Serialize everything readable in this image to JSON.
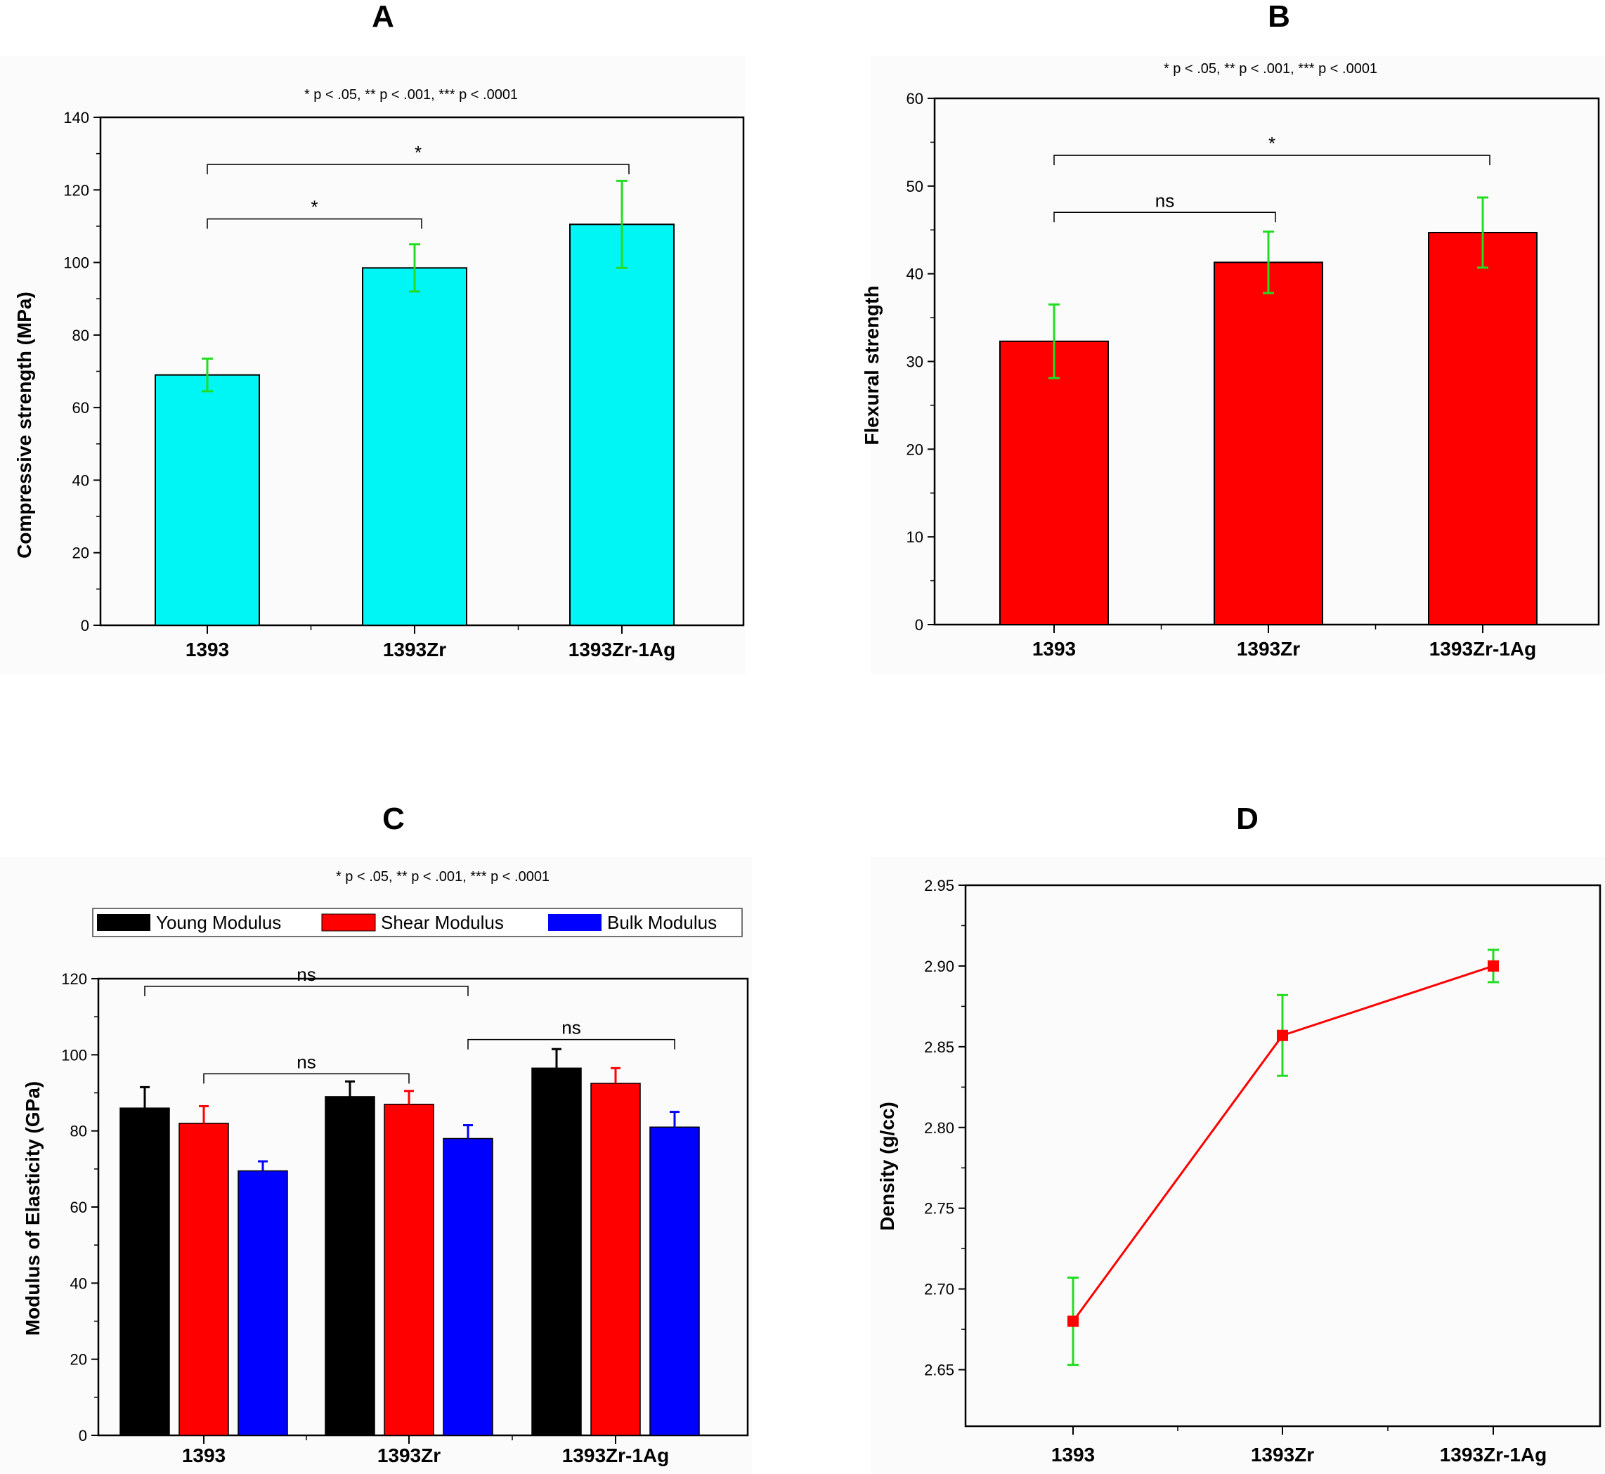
{
  "figure": {
    "panel_letters": [
      "A",
      "B",
      "C",
      "D"
    ]
  },
  "chart_data": [
    {
      "id": "A",
      "type": "bar",
      "title": "A",
      "subtitle": "* p < .05,  **  p < .001,  *** p < .0001",
      "xlabel": "",
      "ylabel": "Compressive strength (MPa)",
      "categories": [
        "1393",
        "1393Zr",
        "1393Zr-1Ag"
      ],
      "values": [
        69,
        98.5,
        110.5
      ],
      "errors": [
        4.5,
        6.5,
        12
      ],
      "bar_color": "#00f5f5",
      "error_color": "#22dd22",
      "ylim": [
        0,
        140
      ],
      "yticks": [
        0,
        20,
        40,
        60,
        80,
        100,
        120,
        140
      ],
      "significance": [
        {
          "from": 0,
          "to": 1,
          "label": "*",
          "y": 112
        },
        {
          "from": 0,
          "to": 2,
          "label": "*",
          "y": 127
        }
      ]
    },
    {
      "id": "B",
      "type": "bar",
      "title": "B",
      "subtitle": "* p < .05,  **  p < .001,  *** p < .0001",
      "xlabel": "",
      "ylabel": "Flexural strength",
      "categories": [
        "1393",
        "1393Zr",
        "1393Zr-1Ag"
      ],
      "values": [
        32.3,
        41.3,
        44.7
      ],
      "errors": [
        4.2,
        3.5,
        4.0
      ],
      "bar_color": "#ff0000",
      "error_color": "#22dd22",
      "ylim": [
        0,
        60
      ],
      "yticks": [
        0,
        10,
        20,
        30,
        40,
        50,
        60
      ],
      "significance": [
        {
          "from": 0,
          "to": 1,
          "label": "ns",
          "y": 47
        },
        {
          "from": 0,
          "to": 2,
          "label": "*",
          "y": 53.5
        }
      ]
    },
    {
      "id": "C",
      "type": "bar",
      "title": "C",
      "subtitle": "* p < .05,  **  p < .001,  *** p < .0001",
      "xlabel": "",
      "ylabel": "Modulus of Elasticity (GPa)",
      "categories": [
        "1393",
        "1393Zr",
        "1393Zr-1Ag"
      ],
      "series": [
        {
          "name": "Young Modulus",
          "color": "#000000",
          "values": [
            86,
            89,
            96.5
          ],
          "errors": [
            5.5,
            4,
            5
          ]
        },
        {
          "name": "Shear Modulus",
          "color": "#ff0000",
          "values": [
            82,
            87,
            92.5
          ],
          "errors": [
            4.5,
            3.5,
            4
          ]
        },
        {
          "name": "Bulk Modulus",
          "color": "#0000ff",
          "values": [
            69.5,
            78,
            81
          ],
          "errors": [
            2.5,
            3.5,
            4
          ]
        }
      ],
      "ylim": [
        0,
        120
      ],
      "yticks": [
        0,
        20,
        40,
        60,
        80,
        100,
        120
      ],
      "legend": "top",
      "significance": [
        {
          "from_group": 0,
          "from_series": 0,
          "to_group": 1,
          "to_series": 2,
          "label": "ns",
          "y": 118
        },
        {
          "from_group": 0,
          "from_series": 1,
          "to_group": 1,
          "to_series": 1,
          "label": "ns",
          "y": 95
        },
        {
          "from_group": 1,
          "from_series": 2,
          "to_group": 2,
          "to_series": 2,
          "label": "ns",
          "y": 104
        }
      ]
    },
    {
      "id": "D",
      "type": "line",
      "title": "D",
      "xlabel": "",
      "ylabel": "Density (g/cc)",
      "categories": [
        "1393",
        "1393Zr",
        "1393Zr-1Ag"
      ],
      "values": [
        2.68,
        2.857,
        2.9
      ],
      "errors": [
        0.027,
        0.025,
        0.01
      ],
      "line_color": "#ff0000",
      "error_color": "#22dd22",
      "ylim": [
        2.615,
        2.95
      ],
      "yticks": [
        2.65,
        2.7,
        2.75,
        2.8,
        2.85,
        2.9,
        2.95
      ],
      "ytick_labels": [
        "2.65",
        "2.70",
        "2.75",
        "2.80",
        "2.85",
        "2.90",
        "2.95"
      ]
    }
  ]
}
